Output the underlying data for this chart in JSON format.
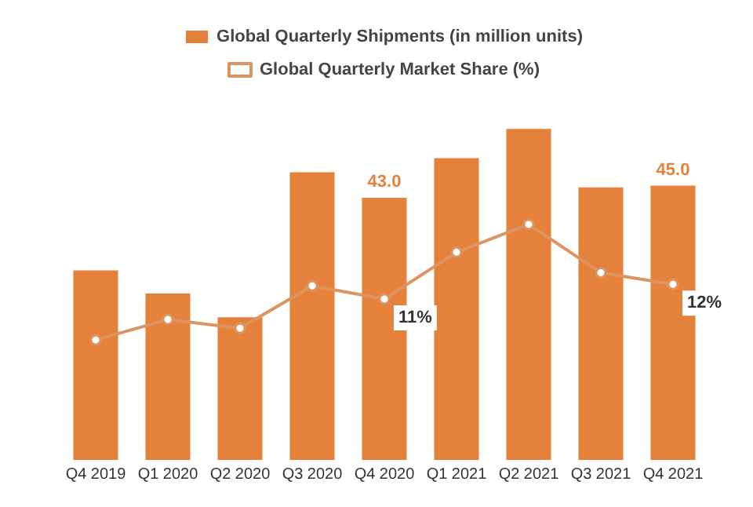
{
  "chart_data": {
    "type": "bar",
    "categories": [
      "Q4 2019",
      "Q1 2020",
      "Q2 2020",
      "Q3 2020",
      "Q4 2020",
      "Q1 2021",
      "Q2 2021",
      "Q3 2021",
      "Q4 2021"
    ],
    "series": [
      {
        "name": "Global Quarterly Shipments (in million units)",
        "type": "bar",
        "color": "#e5813b",
        "values": [
          31.1,
          27.3,
          23.4,
          47.2,
          43.0,
          49.5,
          54.3,
          44.7,
          45.0
        ],
        "value_labels": [
          null,
          null,
          null,
          null,
          "43.0",
          null,
          null,
          null,
          "45.0"
        ]
      },
      {
        "name": "Global Quarterly Market Share (%)",
        "type": "line",
        "axis": "y2",
        "color": "#dc9460",
        "marker": "circle",
        "values": [
          8.2,
          9.6,
          9.0,
          11.9,
          11,
          14.2,
          16.1,
          12.8,
          12
        ],
        "value_labels": [
          null,
          null,
          null,
          null,
          "11%",
          null,
          null,
          null,
          "12%"
        ]
      }
    ],
    "tick_labels": "x",
    "grid": false,
    "legend": "top"
  }
}
